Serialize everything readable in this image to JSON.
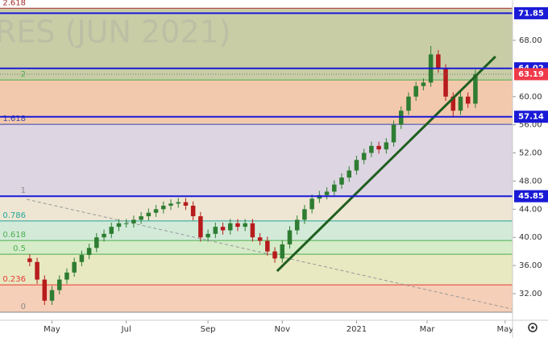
{
  "chart_data": {
    "type": "candlestick",
    "watermark": "RES (JUN 2021)",
    "xlim": [
      -4,
      65
    ],
    "ylim": [
      28.22,
      73.73
    ],
    "xticks": [
      {
        "value": 3,
        "label": "May"
      },
      {
        "value": 13,
        "label": "Jul"
      },
      {
        "value": 24,
        "label": "Sep"
      },
      {
        "value": 34,
        "label": "Nov"
      },
      {
        "value": 44,
        "label": "2021"
      },
      {
        "value": 53.5,
        "label": "Mar"
      },
      {
        "value": 64,
        "label": "May"
      }
    ],
    "yticks": [
      {
        "value": 32,
        "label": "32.00"
      },
      {
        "value": 36,
        "label": "36.00"
      },
      {
        "value": 40,
        "label": "40.00"
      },
      {
        "value": 44,
        "label": "44.00"
      },
      {
        "value": 48,
        "label": "48.00"
      },
      {
        "value": 52,
        "label": "52.00"
      },
      {
        "value": 56,
        "label": "56.00"
      },
      {
        "value": 60,
        "label": "60.00"
      },
      {
        "value": 68,
        "label": "68.00"
      }
    ],
    "up_color": "#2e7d32",
    "down_color": "#b71c1c",
    "open": [
      37,
      36.5,
      34,
      31,
      32.5,
      34,
      35,
      36.5,
      37.5,
      38.5,
      40,
      40.5,
      41.5,
      42,
      42,
      42.5,
      43,
      43.5,
      44,
      44.5,
      44.8,
      45,
      44.5,
      43,
      40,
      40.5,
      41.5,
      41,
      42,
      41.5,
      42,
      40,
      39.5,
      38,
      37,
      39,
      41,
      42.5,
      44,
      45.5,
      46,
      46.5,
      47.5,
      48.5,
      49.5,
      51,
      52,
      53,
      52.5,
      53.5,
      56,
      58,
      60,
      61.5,
      62,
      66,
      64,
      60,
      58,
      60,
      59
    ],
    "high": [
      37.6,
      37.1,
      34.6,
      33.1,
      34.6,
      35.6,
      37.1,
      38.1,
      39.1,
      40.6,
      41.1,
      42.1,
      42.6,
      42.6,
      43.1,
      43.6,
      44.1,
      44.6,
      45.1,
      45.4,
      45.6,
      45.6,
      45.1,
      43.6,
      41.1,
      42.1,
      42.1,
      42.6,
      42.6,
      42.6,
      42.6,
      40.6,
      40.1,
      38.6,
      39.6,
      41.6,
      43.1,
      44.6,
      46.1,
      46.6,
      47.1,
      48.1,
      49.1,
      50.1,
      51.6,
      52.6,
      53.6,
      53.6,
      54.1,
      56.6,
      58.6,
      60.6,
      62.1,
      62.6,
      67.2,
      66.6,
      64.6,
      60.6,
      60.6,
      60.6,
      63.8
    ],
    "low": [
      35.9,
      33.4,
      30.4,
      30.4,
      31.9,
      33.4,
      34.4,
      35.9,
      36.9,
      37.9,
      39.4,
      39.9,
      40.9,
      41.4,
      41.4,
      41.9,
      42.4,
      42.9,
      43.4,
      43.9,
      44.2,
      43.9,
      42.4,
      39.4,
      39.4,
      39.9,
      40.4,
      40.4,
      40.9,
      40.9,
      39.4,
      38.9,
      37.4,
      36.4,
      36.4,
      38.4,
      40.4,
      41.9,
      43.4,
      44.9,
      45.4,
      45.9,
      46.9,
      47.9,
      48.9,
      50.4,
      51.4,
      51.9,
      51.9,
      52.9,
      55.4,
      57.4,
      59.4,
      60.9,
      61.4,
      63.4,
      59.4,
      57.2,
      57.4,
      58.4,
      58.4
    ],
    "close": [
      36.5,
      34,
      31,
      32.5,
      34,
      35,
      36.5,
      37.5,
      38.5,
      40,
      40.5,
      41.5,
      42,
      42,
      42.5,
      43,
      43.5,
      44,
      44.5,
      44.8,
      45,
      44.5,
      43,
      40,
      40.5,
      41.5,
      41,
      42,
      41.5,
      42,
      40,
      39.5,
      38,
      37,
      39,
      41,
      42.5,
      44,
      45.5,
      46,
      46.5,
      47.5,
      48.5,
      49.5,
      51,
      52,
      53,
      52.5,
      53.5,
      56,
      58,
      60,
      61.5,
      62,
      66,
      64,
      60,
      58,
      60,
      59,
      63.19
    ],
    "fib_levels": [
      {
        "ratio": 2.618,
        "price": 72.55,
        "color": "#a52a2a",
        "fill": "#c9cda6"
      },
      {
        "ratio": 2,
        "price": 62.36,
        "color": "#4caf50",
        "fill": "#f3c9ad"
      },
      {
        "ratio": 1.618,
        "price": 56.06,
        "color": "#3949ab",
        "fill": "#ddd5e2"
      },
      {
        "ratio": 1,
        "price": 45.85,
        "color": "#888888",
        "fill": "#eee6d3"
      },
      {
        "ratio": 0.786,
        "price": 42.33,
        "color": "#26a69a",
        "fill": "#d3ead9"
      },
      {
        "ratio": 0.618,
        "price": 39.56,
        "color": "#4caf50",
        "fill": "#d6ecc9"
      },
      {
        "ratio": 0.5,
        "price": 37.6,
        "color": "#4caf50",
        "fill": "#e8e9c1"
      },
      {
        "ratio": 0.236,
        "price": 33.25,
        "color": "#e53935",
        "fill": "#f6cfb8"
      },
      {
        "ratio": 0,
        "price": 29.36,
        "color": "#888888",
        "fill": "#ffffff"
      }
    ],
    "levels": [
      {
        "price": 71.85,
        "color": "#1a1ad6"
      },
      {
        "price": 64.02,
        "color": "#1a1ad6"
      },
      {
        "price": 57.14,
        "color": "#1a1ad6"
      },
      {
        "price": 45.85,
        "color": "#1a1ad6"
      }
    ],
    "last_price": {
      "price": 63.19,
      "color": "#ef3a4a"
    },
    "trendline": {
      "x": [
        33.3,
        62.7
      ],
      "y": [
        35.2,
        65.7
      ],
      "color": "#1f5f1f"
    },
    "dashed_line": {
      "x": [
        -0.4,
        65
      ],
      "y": [
        45.4,
        29.8
      ],
      "color": "#999999"
    }
  }
}
